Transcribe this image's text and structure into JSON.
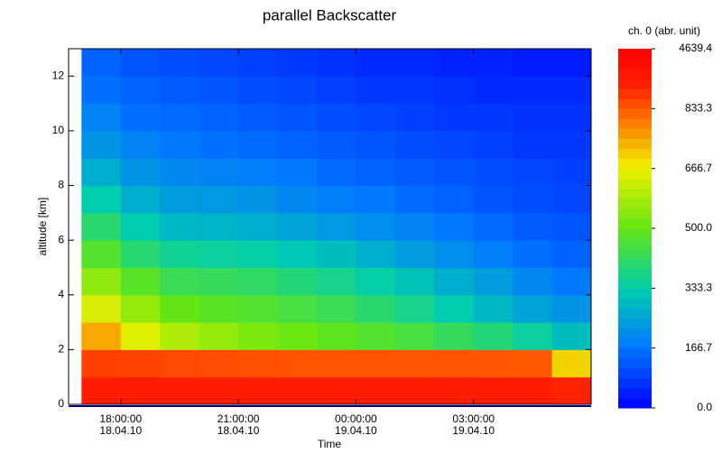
{
  "chart_data": {
    "type": "heatmap",
    "title": "parallel Backscatter",
    "x_label": "Time",
    "y_label": "altitude [km]",
    "colorbar_label": "ch. 0 (abr. unit)",
    "x": [
      17,
      18,
      19,
      20,
      21,
      22,
      23,
      24,
      25,
      26,
      27,
      28,
      29
    ],
    "y": [
      0,
      1,
      2,
      3,
      4,
      5,
      6,
      7,
      8,
      9,
      10,
      11,
      12
    ],
    "values": [
      [
        2500,
        2500,
        2500,
        2500,
        2500,
        2500,
        2500,
        2500,
        2500,
        2500,
        2500,
        2500,
        2200
      ],
      [
        1500,
        1400,
        1300,
        1200,
        1100,
        1000,
        1000,
        1000,
        950,
        950,
        900,
        850,
        700
      ],
      [
        750,
        650,
        590,
        560,
        530,
        510,
        490,
        470,
        450,
        420,
        390,
        350,
        300
      ],
      [
        640,
        560,
        500,
        480,
        470,
        450,
        430,
        400,
        370,
        330,
        290,
        250,
        220
      ],
      [
        550,
        480,
        430,
        420,
        410,
        390,
        370,
        340,
        310,
        270,
        240,
        200,
        170
      ],
      [
        470,
        400,
        360,
        350,
        340,
        320,
        300,
        270,
        240,
        210,
        180,
        160,
        140
      ],
      [
        400,
        330,
        290,
        280,
        270,
        250,
        230,
        210,
        190,
        170,
        150,
        130,
        120
      ],
      [
        330,
        270,
        240,
        230,
        220,
        200,
        180,
        170,
        150,
        140,
        120,
        110,
        100
      ],
      [
        270,
        220,
        200,
        190,
        180,
        170,
        150,
        140,
        130,
        120,
        110,
        100,
        90
      ],
      [
        220,
        190,
        170,
        160,
        150,
        140,
        130,
        120,
        110,
        100,
        90,
        80,
        80
      ],
      [
        190,
        160,
        150,
        140,
        130,
        120,
        110,
        100,
        90,
        80,
        80,
        70,
        70
      ],
      [
        160,
        140,
        130,
        120,
        110,
        100,
        90,
        80,
        80,
        70,
        60,
        60,
        60
      ],
      [
        140,
        120,
        110,
        100,
        90,
        80,
        70,
        60,
        60,
        50,
        50,
        40,
        40
      ]
    ],
    "xlim": [
      16.67,
      30
    ],
    "xticks": [
      {
        "value": 18,
        "label": [
          "18:00:00",
          "18.04.10"
        ]
      },
      {
        "value": 21,
        "label": [
          "21:00:00",
          "18.04.10"
        ]
      },
      {
        "value": 24,
        "label": [
          "00:00:00",
          "19.04.10"
        ]
      },
      {
        "value": 27,
        "label": [
          "03:00:00",
          "19.04.10"
        ]
      }
    ],
    "ylim": [
      0,
      13
    ],
    "yticks": [
      0,
      2,
      4,
      6,
      8,
      10,
      12
    ],
    "zlim": [
      0,
      4639.4
    ],
    "zticks": [
      {
        "value": 0,
        "label": "0.0"
      },
      166.7,
      333.3,
      {
        "value": 500,
        "label": "500.0"
      },
      666.7,
      833.3,
      4639.4
    ]
  }
}
